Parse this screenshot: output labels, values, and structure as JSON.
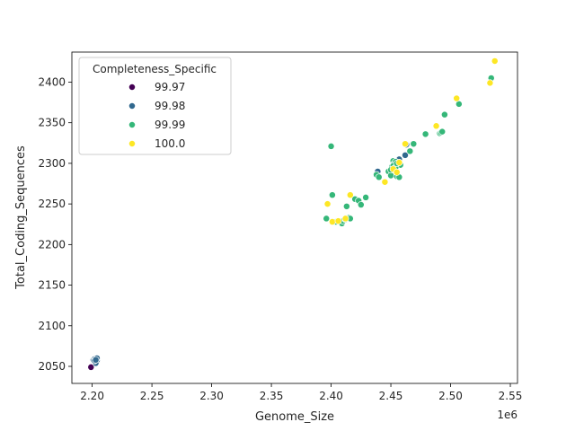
{
  "chart_data": {
    "type": "scatter",
    "title": "",
    "xlabel": "Genome_Size",
    "ylabel": "Total_Coding_Sequences",
    "x_offset_label": "1e6",
    "xlim": [
      2.183,
      2.556
    ],
    "ylim": [
      2029,
      2437
    ],
    "x_ticks": [
      2.2,
      2.25,
      2.3,
      2.35,
      2.4,
      2.45,
      2.5,
      2.55
    ],
    "x_tick_labels": [
      "2.20",
      "2.25",
      "2.30",
      "2.35",
      "2.40",
      "2.45",
      "2.50",
      "2.55"
    ],
    "y_ticks": [
      2050,
      2100,
      2150,
      2200,
      2250,
      2300,
      2350,
      2400
    ],
    "y_tick_labels": [
      "2050",
      "2100",
      "2150",
      "2200",
      "2250",
      "2300",
      "2350",
      "2400"
    ],
    "grid": false,
    "legend": {
      "title": "Completeness_Specific",
      "placement": "top-left",
      "entries": [
        "99.97",
        "99.98",
        "99.99",
        "100.0"
      ]
    },
    "series": [
      {
        "name": "99.97",
        "color": "#440154",
        "x": [
          2.199
        ],
        "y": [
          2049
        ]
      },
      {
        "name": "99.98",
        "color": "#31688e",
        "x": [
          2.201,
          2.202,
          2.203,
          2.204,
          2.203,
          2.204,
          2.202,
          2.203,
          2.439,
          2.457,
          2.462,
          2.463
        ],
        "y": [
          2058,
          2059,
          2056,
          2057,
          2054,
          2060,
          2057,
          2058,
          2290,
          2305,
          2310,
          2323
        ]
      },
      {
        "name": "99.99",
        "color": "#35b779",
        "x": [
          2.396,
          2.4,
          2.401,
          2.404,
          2.409,
          2.41,
          2.412,
          2.413,
          2.415,
          2.416,
          2.42,
          2.423,
          2.425,
          2.429,
          2.438,
          2.44,
          2.445,
          2.448,
          2.45,
          2.451,
          2.452,
          2.453,
          2.454,
          2.455,
          2.456,
          2.457,
          2.458,
          2.452,
          2.454,
          2.45,
          2.455,
          2.466,
          2.469,
          2.479,
          2.491,
          2.492,
          2.493,
          2.495,
          2.507,
          2.534
        ],
        "y": [
          2232,
          2321,
          2261,
          2228,
          2226,
          2229,
          2231,
          2247,
          2233,
          2232,
          2256,
          2254,
          2249,
          2258,
          2286,
          2283,
          2277,
          2290,
          2285,
          2296,
          2303,
          2300,
          2302,
          2284,
          2299,
          2283,
          2298,
          2297,
          2295,
          2292,
          2300,
          2315,
          2324,
          2336,
          2337,
          2338,
          2339,
          2360,
          2373,
          2405
        ]
      },
      {
        "name": "100.0",
        "color": "#fde725",
        "x": [
          2.397,
          2.401,
          2.406,
          2.412,
          2.416,
          2.445,
          2.452,
          2.455,
          2.457,
          2.462,
          2.488,
          2.505,
          2.533,
          2.537
        ],
        "y": [
          2250,
          2228,
          2229,
          2232,
          2261,
          2277,
          2293,
          2289,
          2301,
          2324,
          2346,
          2380,
          2399,
          2426
        ]
      }
    ]
  }
}
